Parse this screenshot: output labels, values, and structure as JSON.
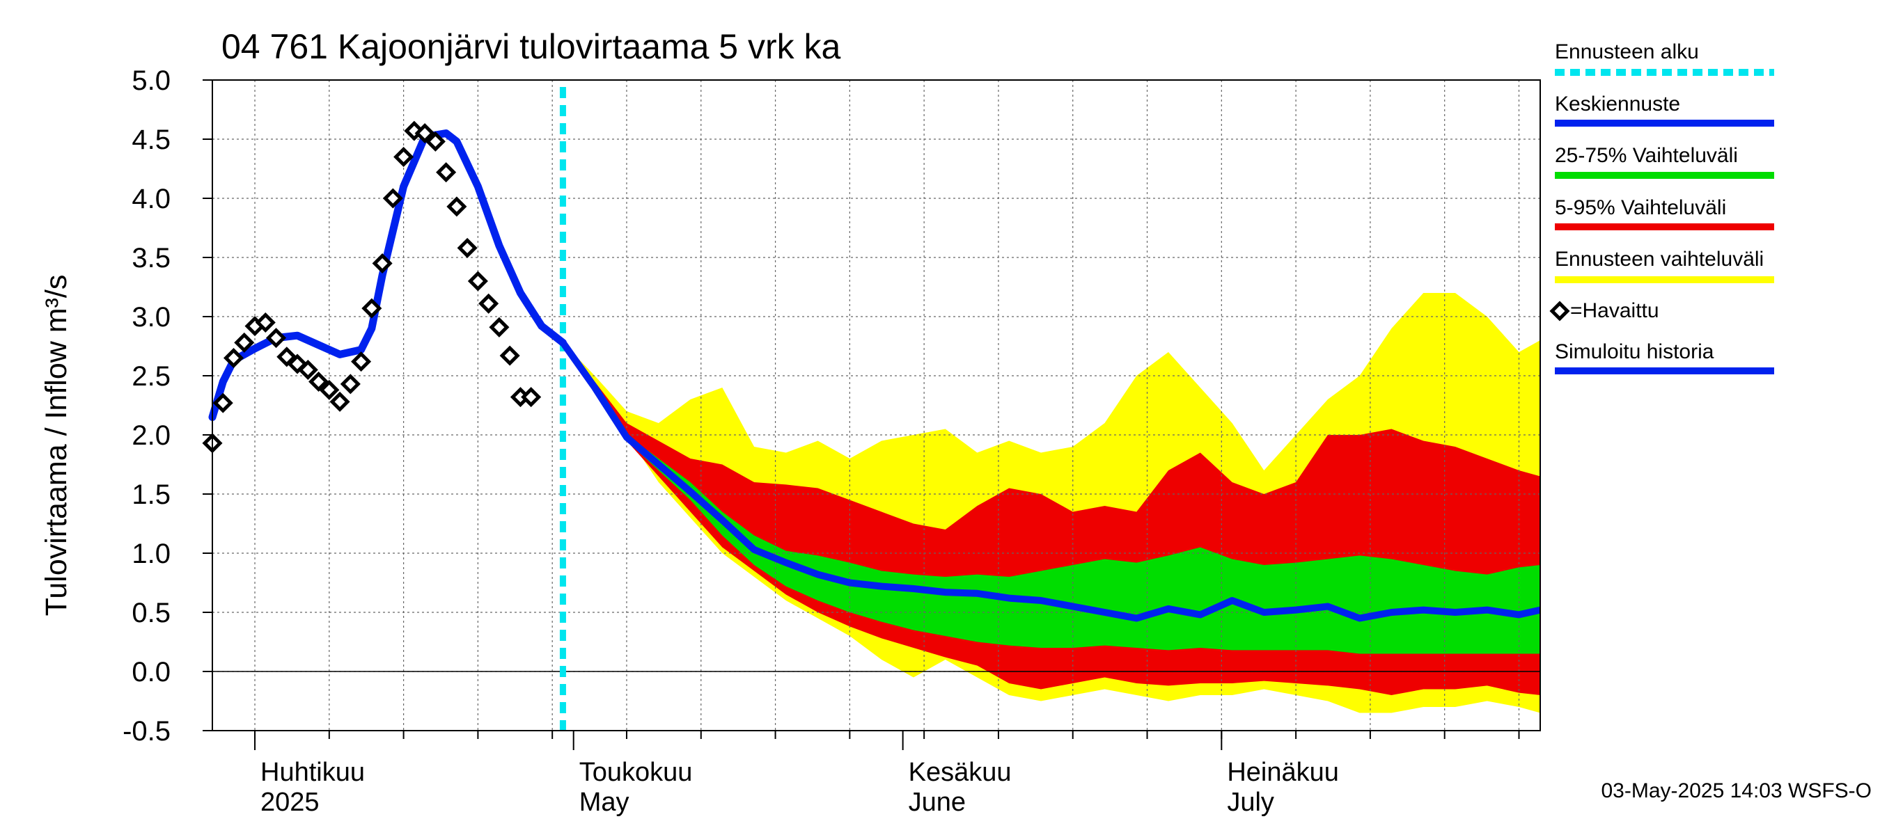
{
  "chart_data": {
    "type": "area",
    "title": "04 761 Kajoonjärvi tulovirtaama 5 vrk ka",
    "ylabel": "Tulovirtaama / Inflow   m³/s",
    "ylim": [
      -0.5,
      5.0
    ],
    "yticks": [
      "5.0",
      "4.5",
      "4.0",
      "3.5",
      "3.0",
      "2.5",
      "2.0",
      "1.5",
      "1.0",
      "0.5",
      "0.0",
      "-0.5"
    ],
    "xlim": [
      "2025-03-28",
      "2025-07-31"
    ],
    "month_labels": [
      {
        "date": "2025-04-01",
        "fi": "Huhtikuu",
        "en": "2025"
      },
      {
        "date": "2025-05-01",
        "fi": "Toukokuu",
        "en": "May"
      },
      {
        "date": "2025-06-01",
        "fi": "Kesäkuu",
        "en": "June"
      },
      {
        "date": "2025-07-01",
        "fi": "Heinäkuu",
        "en": "July"
      }
    ],
    "forecast_start": "2025-04-30",
    "grid": true,
    "legend_placement": "right",
    "legend": [
      {
        "label": "Ennusteen alku",
        "color": "#00e5ee",
        "style": "dashed"
      },
      {
        "label": "Keskiennuste",
        "color": "#0022ee",
        "style": "line"
      },
      {
        "label": "25-75% Vaihteluväli",
        "color": "#00dd00",
        "style": "line"
      },
      {
        "label": "5-95% Vaihteluväli",
        "color": "#ee0000",
        "style": "line"
      },
      {
        "label": "Ennusteen vaihteluväli",
        "color": "#ffff00",
        "style": "line"
      },
      {
        "label": "=Havaittu",
        "color": "#000000",
        "style": "marker"
      },
      {
        "label": "Simuloitu historia",
        "color": "#0022ee",
        "style": "line"
      }
    ],
    "observed": {
      "x": [
        "2025-03-28",
        "2025-03-29",
        "2025-03-30",
        "2025-03-31",
        "2025-04-01",
        "2025-04-02",
        "2025-04-03",
        "2025-04-04",
        "2025-04-05",
        "2025-04-06",
        "2025-04-07",
        "2025-04-08",
        "2025-04-09",
        "2025-04-10",
        "2025-04-11",
        "2025-04-12",
        "2025-04-13",
        "2025-04-14",
        "2025-04-15",
        "2025-04-16",
        "2025-04-17",
        "2025-04-18",
        "2025-04-19",
        "2025-04-20",
        "2025-04-21",
        "2025-04-22",
        "2025-04-23",
        "2025-04-24",
        "2025-04-25",
        "2025-04-26",
        "2025-04-27",
        "2025-04-28",
        "2025-04-29",
        "2025-04-30"
      ],
      "y": [
        1.93,
        2.27,
        2.65,
        2.78,
        2.92,
        2.95,
        2.82,
        2.66,
        2.6,
        2.55,
        2.45,
        2.38,
        2.28,
        2.43,
        2.62,
        3.07,
        3.45,
        4.0,
        4.35,
        4.57,
        4.55,
        4.48,
        4.22,
        3.93,
        3.58,
        3.3,
        3.11,
        2.91,
        2.67,
        2.32,
        2.32,
        null,
        null,
        null
      ]
    },
    "simulated_history": {
      "x": [
        "2025-03-28",
        "2025-03-29",
        "2025-03-30",
        "2025-04-01",
        "2025-04-03",
        "2025-04-05",
        "2025-04-07",
        "2025-04-09",
        "2025-04-11",
        "2025-04-12",
        "2025-04-13",
        "2025-04-15",
        "2025-04-17",
        "2025-04-19",
        "2025-04-20",
        "2025-04-22",
        "2025-04-24",
        "2025-04-26",
        "2025-04-28",
        "2025-04-30"
      ],
      "y": [
        2.15,
        2.45,
        2.63,
        2.73,
        2.82,
        2.84,
        2.76,
        2.68,
        2.72,
        2.9,
        3.35,
        4.1,
        4.52,
        4.55,
        4.48,
        4.1,
        3.6,
        3.2,
        2.92,
        2.78
      ]
    },
    "series": [
      {
        "name": "Ennusteen vaihteluväli",
        "x": [
          "2025-04-30",
          "2025-05-03",
          "2025-05-06",
          "2025-05-09",
          "2025-05-12",
          "2025-05-15",
          "2025-05-18",
          "2025-05-21",
          "2025-05-24",
          "2025-05-27",
          "2025-05-30",
          "2025-06-02",
          "2025-06-05",
          "2025-06-08",
          "2025-06-11",
          "2025-06-14",
          "2025-06-17",
          "2025-06-20",
          "2025-06-23",
          "2025-06-26",
          "2025-06-29",
          "2025-07-02",
          "2025-07-05",
          "2025-07-08",
          "2025-07-11",
          "2025-07-14",
          "2025-07-17",
          "2025-07-20",
          "2025-07-23",
          "2025-07-26",
          "2025-07-29",
          "2025-07-31"
        ],
        "upper": [
          2.78,
          2.5,
          2.2,
          2.1,
          2.3,
          2.4,
          1.9,
          1.85,
          1.95,
          1.8,
          1.95,
          2.0,
          2.05,
          1.85,
          1.95,
          1.85,
          1.9,
          2.1,
          2.5,
          2.7,
          2.4,
          2.1,
          1.7,
          2.0,
          2.3,
          2.5,
          2.9,
          3.2,
          3.2,
          3.0,
          2.7,
          2.8
        ],
        "lower": [
          2.75,
          2.4,
          2.0,
          1.6,
          1.3,
          1.0,
          0.8,
          0.6,
          0.45,
          0.3,
          0.1,
          -0.05,
          0.1,
          -0.05,
          -0.2,
          -0.25,
          -0.2,
          -0.15,
          -0.2,
          -0.25,
          -0.2,
          -0.2,
          -0.15,
          -0.2,
          -0.25,
          -0.35,
          -0.35,
          -0.3,
          -0.3,
          -0.25,
          -0.3,
          -0.35
        ]
      },
      {
        "name": "5-95% Vaihteluväli",
        "x": [
          "2025-04-30",
          "2025-05-03",
          "2025-05-06",
          "2025-05-09",
          "2025-05-12",
          "2025-05-15",
          "2025-05-18",
          "2025-05-21",
          "2025-05-24",
          "2025-05-27",
          "2025-05-30",
          "2025-06-02",
          "2025-06-05",
          "2025-06-08",
          "2025-06-11",
          "2025-06-14",
          "2025-06-17",
          "2025-06-20",
          "2025-06-23",
          "2025-06-26",
          "2025-06-29",
          "2025-07-02",
          "2025-07-05",
          "2025-07-08",
          "2025-07-11",
          "2025-07-14",
          "2025-07-17",
          "2025-07-20",
          "2025-07-23",
          "2025-07-26",
          "2025-07-29",
          "2025-07-31"
        ],
        "upper": [
          2.78,
          2.45,
          2.1,
          1.95,
          1.8,
          1.75,
          1.6,
          1.58,
          1.55,
          1.45,
          1.35,
          1.25,
          1.2,
          1.4,
          1.55,
          1.5,
          1.35,
          1.4,
          1.35,
          1.7,
          1.85,
          1.6,
          1.5,
          1.6,
          2.0,
          2.0,
          2.05,
          1.95,
          1.9,
          1.8,
          1.7,
          1.65
        ],
        "lower": [
          2.76,
          2.35,
          1.95,
          1.65,
          1.35,
          1.05,
          0.85,
          0.65,
          0.5,
          0.38,
          0.28,
          0.2,
          0.12,
          0.05,
          -0.1,
          -0.15,
          -0.1,
          -0.05,
          -0.1,
          -0.12,
          -0.1,
          -0.1,
          -0.08,
          -0.1,
          -0.12,
          -0.15,
          -0.2,
          -0.15,
          -0.15,
          -0.12,
          -0.18,
          -0.2
        ]
      },
      {
        "name": "25-75% Vaihteluväli",
        "x": [
          "2025-04-30",
          "2025-05-03",
          "2025-05-06",
          "2025-05-09",
          "2025-05-12",
          "2025-05-15",
          "2025-05-18",
          "2025-05-21",
          "2025-05-24",
          "2025-05-27",
          "2025-05-30",
          "2025-06-02",
          "2025-06-05",
          "2025-06-08",
          "2025-06-11",
          "2025-06-14",
          "2025-06-17",
          "2025-06-20",
          "2025-06-23",
          "2025-06-26",
          "2025-06-29",
          "2025-07-02",
          "2025-07-05",
          "2025-07-08",
          "2025-07-11",
          "2025-07-14",
          "2025-07-17",
          "2025-07-20",
          "2025-07-23",
          "2025-07-26",
          "2025-07-29",
          "2025-07-31"
        ],
        "upper": [
          2.78,
          2.4,
          2.0,
          1.8,
          1.6,
          1.35,
          1.15,
          1.02,
          0.98,
          0.92,
          0.85,
          0.82,
          0.8,
          0.82,
          0.8,
          0.85,
          0.9,
          0.95,
          0.92,
          0.98,
          1.05,
          0.95,
          0.9,
          0.92,
          0.95,
          0.98,
          0.95,
          0.9,
          0.85,
          0.82,
          0.88,
          0.9
        ],
        "lower": [
          2.77,
          2.38,
          1.95,
          1.7,
          1.45,
          1.15,
          0.9,
          0.72,
          0.6,
          0.5,
          0.42,
          0.35,
          0.3,
          0.25,
          0.22,
          0.2,
          0.2,
          0.22,
          0.2,
          0.18,
          0.2,
          0.18,
          0.18,
          0.18,
          0.18,
          0.15,
          0.15,
          0.15,
          0.15,
          0.15,
          0.15,
          0.15
        ]
      },
      {
        "name": "Keskiennuste",
        "x": [
          "2025-04-30",
          "2025-05-03",
          "2025-05-06",
          "2025-05-09",
          "2025-05-12",
          "2025-05-15",
          "2025-05-18",
          "2025-05-21",
          "2025-05-24",
          "2025-05-27",
          "2025-05-30",
          "2025-06-02",
          "2025-06-05",
          "2025-06-08",
          "2025-06-11",
          "2025-06-14",
          "2025-06-17",
          "2025-06-20",
          "2025-06-23",
          "2025-06-26",
          "2025-06-29",
          "2025-07-02",
          "2025-07-05",
          "2025-07-08",
          "2025-07-11",
          "2025-07-14",
          "2025-07-17",
          "2025-07-20",
          "2025-07-23",
          "2025-07-26",
          "2025-07-29",
          "2025-07-31"
        ],
        "y": [
          2.78,
          2.4,
          1.98,
          1.75,
          1.52,
          1.28,
          1.03,
          0.92,
          0.82,
          0.75,
          0.72,
          0.7,
          0.67,
          0.66,
          0.62,
          0.6,
          0.55,
          0.5,
          0.45,
          0.53,
          0.48,
          0.6,
          0.5,
          0.52,
          0.55,
          0.45,
          0.5,
          0.52,
          0.5,
          0.52,
          0.48,
          0.52
        ]
      }
    ]
  },
  "timestamp": "03-May-2025 14:03 WSFS-O"
}
